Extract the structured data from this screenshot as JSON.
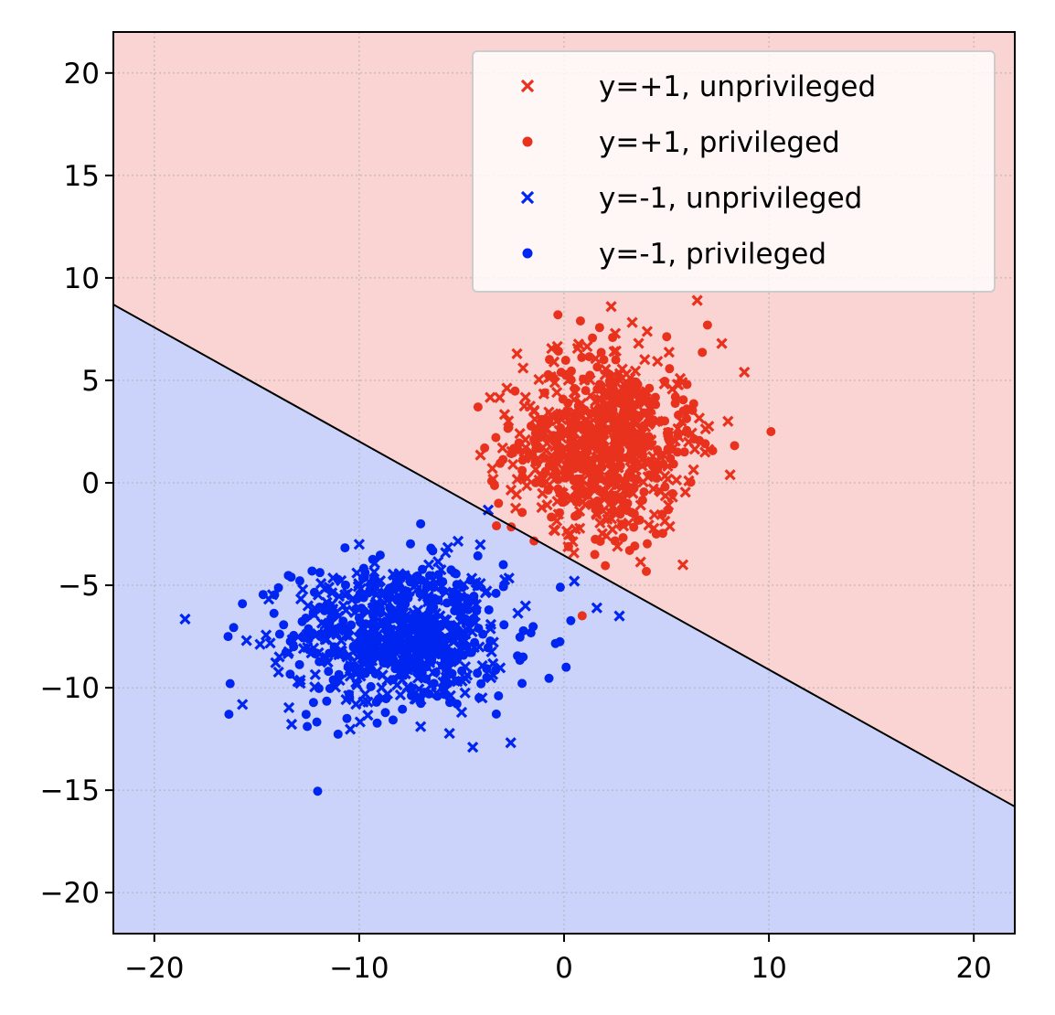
{
  "chart_data": {
    "type": "scatter",
    "title": "",
    "xlabel": "",
    "ylabel": "",
    "xlim": [
      -22,
      22
    ],
    "ylim": [
      -22,
      22
    ],
    "xticks": [
      -20,
      -10,
      0,
      10,
      20
    ],
    "yticks": [
      -20,
      -15,
      -10,
      -5,
      0,
      5,
      10,
      15,
      20
    ],
    "xtick_labels": [
      "−20",
      "−10",
      "0",
      "10",
      "20"
    ],
    "ytick_labels": [
      "−20",
      "−15",
      "−10",
      "−5",
      "0",
      "5",
      "10",
      "15",
      "20"
    ],
    "grid": true,
    "legend_position": "top-right",
    "decision_boundary": {
      "points": [
        [
          -22,
          8.7
        ],
        [
          22,
          -15.8
        ]
      ],
      "positive_region_color": "#fad4d2",
      "negative_region_color": "#cbd3fb",
      "line_color": "#000000"
    },
    "series": [
      {
        "name": "y=+1, unprivileged",
        "marker": "x",
        "color": "#e8321e",
        "center": [
          2.0,
          2.0
        ],
        "std": [
          2.2,
          2.2
        ],
        "count": 400,
        "sample_points": [
          [
            2.3,
            8.6
          ],
          [
            6.5,
            8.9
          ],
          [
            8.8,
            5.4
          ],
          [
            8.0,
            3.0
          ],
          [
            -2.3,
            6.3
          ],
          [
            -3.5,
            0.7
          ],
          [
            -3.0,
            1.7
          ],
          [
            0.3,
            -2.5
          ],
          [
            5.8,
            -4.0
          ],
          [
            -0.5,
            -2.3
          ],
          [
            7.7,
            6.8
          ],
          [
            2.8,
            -2.0
          ]
        ]
      },
      {
        "name": "y=+1, privileged",
        "marker": "circle",
        "color": "#e8321e",
        "center": [
          2.0,
          2.0
        ],
        "std": [
          2.2,
          2.2
        ],
        "count": 400,
        "sample_points": [
          [
            -0.3,
            8.2
          ],
          [
            10.1,
            2.5
          ],
          [
            7.0,
            7.7
          ],
          [
            -4.2,
            3.7
          ],
          [
            -3.2,
            -1.0
          ],
          [
            1.5,
            -3.5
          ],
          [
            3.2,
            -3.3
          ],
          [
            -3.3,
            -2.1
          ],
          [
            6.0,
            4.8
          ],
          [
            0.8,
            7.9
          ],
          [
            -2.7,
            2.7
          ],
          [
            4.5,
            -2.5
          ]
        ]
      },
      {
        "name": "y=-1, unprivileged",
        "marker": "x",
        "color": "#0025f0",
        "center": [
          -8.0,
          -7.5
        ],
        "std": [
          2.6,
          1.8
        ],
        "count": 400,
        "sample_points": [
          [
            -6.6,
            -4.0
          ],
          [
            -10.0,
            -3.0
          ],
          [
            2.7,
            -6.5
          ],
          [
            1.6,
            -6.1
          ],
          [
            -9.8,
            -10.7
          ],
          [
            -7.0,
            -11.9
          ],
          [
            -13.0,
            -9.7
          ],
          [
            -15.5,
            -7.7
          ],
          [
            -5.0,
            -11.2
          ],
          [
            -12.5,
            -6.0
          ],
          [
            -4.0,
            -10.5
          ],
          [
            0.5,
            -4.8
          ]
        ]
      },
      {
        "name": "y=-1, privileged",
        "marker": "circle",
        "color": "#0025f0",
        "center": [
          -8.0,
          -7.5
        ],
        "std": [
          2.6,
          1.8
        ],
        "count": 400,
        "sample_points": [
          [
            -16.3,
            -9.8
          ],
          [
            -16.4,
            -7.5
          ],
          [
            -15.7,
            -5.9
          ],
          [
            -10.6,
            -11.5
          ],
          [
            -3.2,
            -10.4
          ],
          [
            0.1,
            -9.0
          ],
          [
            -7.0,
            -2.0
          ],
          [
            -13.2,
            -8.0
          ],
          [
            -4.4,
            -6.6
          ],
          [
            -9.0,
            -6.0
          ],
          [
            -2.0,
            -8.5
          ],
          [
            -11.5,
            -9.2
          ]
        ]
      }
    ]
  },
  "legend": {
    "entries": [
      {
        "label": "y=+1, unprivileged",
        "marker": "x",
        "color": "#e8321e"
      },
      {
        "label": "y=+1, privileged",
        "marker": "circle",
        "color": "#e8321e"
      },
      {
        "label": "y=-1, unprivileged",
        "marker": "x",
        "color": "#0025f0"
      },
      {
        "label": "y=-1, privileged",
        "marker": "circle",
        "color": "#0025f0"
      }
    ]
  }
}
